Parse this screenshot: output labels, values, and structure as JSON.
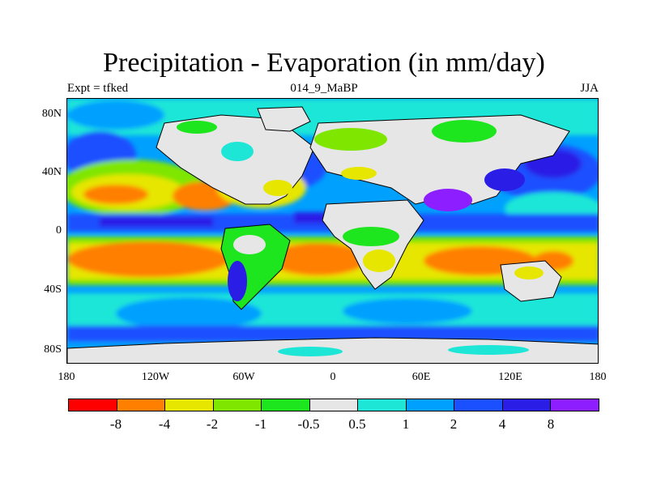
{
  "header": {
    "title": "Precipitation - Evaporation (in mm/day)",
    "left_label": "Expt = tfked",
    "center_label": "014_9_MaBP",
    "right_label": "JJA"
  },
  "map": {
    "y_ticks": [
      "80N",
      "40N",
      "0",
      "40S",
      "80S"
    ],
    "x_ticks": [
      "180",
      "120W",
      "60W",
      "0",
      "60E",
      "120E",
      "180"
    ]
  },
  "legend": {
    "colors": [
      "#ff0000",
      "#ff7f00",
      "#e6e600",
      "#7fe600",
      "#1ee61e",
      "#e6e6e6",
      "#1ee6d7",
      "#00a0ff",
      "#1a50ff",
      "#2a1ee6",
      "#8c1eff"
    ],
    "labels": [
      "-8",
      "-4",
      "-2",
      "-1",
      "-0.5",
      "0.5",
      "1",
      "2",
      "4",
      "8"
    ]
  }
}
